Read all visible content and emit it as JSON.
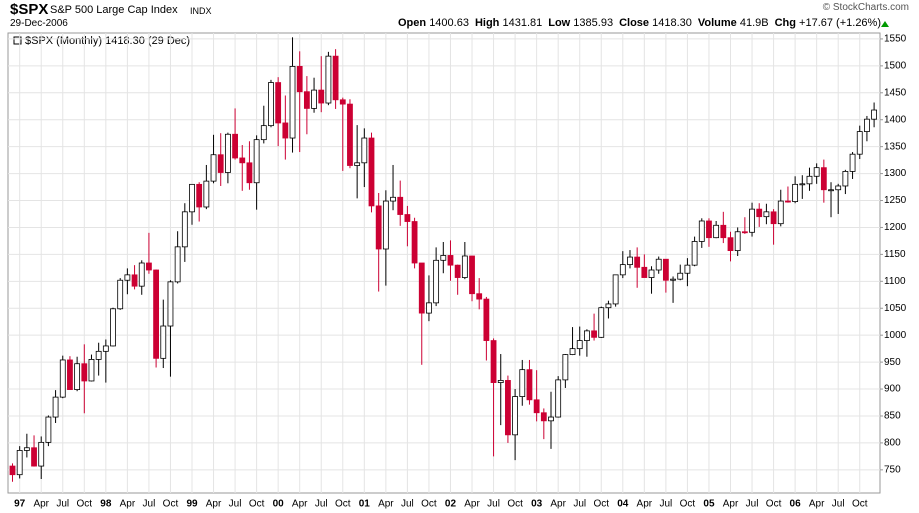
{
  "chart_data": {
    "type": "candlestick",
    "title": "$SPX",
    "subtitle": "S&P 500 Large Cap Index",
    "exchange": "INDX",
    "date": "29-Dec-2006",
    "source": "© StockCharts.com",
    "stats": [
      {
        "label": "Open",
        "value": "1400.63"
      },
      {
        "label": "High",
        "value": "1431.81"
      },
      {
        "label": "Low",
        "value": "1385.93"
      },
      {
        "label": "Close",
        "value": "1418.30"
      },
      {
        "label": "Volume",
        "value": "41.9B"
      },
      {
        "label": "Chg",
        "value": "+17.67 (+1.26%)"
      }
    ],
    "legend": "$SPX (Monthly) 1418.30 (29 Dec)",
    "up_color": "#000000",
    "down_color": "#cc0033",
    "grid": true,
    "ylim": [
      707,
      1561
    ],
    "yticks": [
      750,
      800,
      850,
      900,
      950,
      1000,
      1050,
      1100,
      1150,
      1200,
      1250,
      1300,
      1350,
      1400,
      1450,
      1500,
      1550
    ],
    "categories": [
      null,
      "97",
      null,
      null,
      "Apr",
      null,
      null,
      "Jul",
      null,
      null,
      "Oct",
      null,
      null,
      "98",
      null,
      null,
      "Apr",
      null,
      null,
      "Jul",
      null,
      null,
      "Oct",
      null,
      null,
      "99",
      null,
      null,
      "Apr",
      null,
      null,
      "Jul",
      null,
      null,
      "Oct",
      null,
      null,
      "00",
      null,
      null,
      "Apr",
      null,
      null,
      "Jul",
      null,
      null,
      "Oct",
      null,
      null,
      "01",
      null,
      null,
      "Apr",
      null,
      null,
      "Jul",
      null,
      null,
      "Oct",
      null,
      null,
      "02",
      null,
      null,
      "Apr",
      null,
      null,
      "Jul",
      null,
      null,
      "Oct",
      null,
      null,
      "03",
      null,
      null,
      "Apr",
      null,
      null,
      "Jul",
      null,
      null,
      "Oct",
      null,
      null,
      "04",
      null,
      null,
      "Apr",
      null,
      null,
      "Jul",
      null,
      null,
      "Oct",
      null,
      null,
      "05",
      null,
      null,
      "Apr",
      null,
      null,
      "Jul",
      null,
      null,
      "Oct",
      null,
      null,
      "06",
      null,
      null,
      "Apr",
      null,
      null,
      "Jul",
      null,
      null,
      "Oct",
      null,
      null
    ],
    "open": [
      757,
      741,
      786,
      791,
      757,
      801,
      848,
      885,
      954,
      899,
      947,
      915,
      955,
      970,
      980,
      1049,
      1102,
      1112,
      1091,
      1134,
      1121,
      957,
      1017,
      1099,
      1164,
      1229,
      1280,
      1238,
      1286,
      1335,
      1302,
      1373,
      1329,
      1320,
      1283,
      1363,
      1389,
      1469,
      1394,
      1366,
      1499,
      1452,
      1421,
      1455,
      1431,
      1518,
      1437,
      1429,
      1315,
      1320,
      1366,
      1240,
      1160,
      1249,
      1256,
      1224,
      1211,
      1134,
      1041,
      1060,
      1139,
      1148,
      1130,
      1107,
      1147,
      1077,
      1067,
      990,
      912,
      916,
      815,
      886,
      936,
      880,
      856,
      841,
      848,
      917,
      964,
      975,
      990,
      1008,
      996,
      1051,
      1058,
      1112,
      1131,
      1145,
      1126,
      1107,
      1121,
      1141,
      1102,
      1104,
      1115,
      1130,
      1174,
      1212,
      1181,
      1204,
      1181,
      1157,
      1192,
      1191,
      1234,
      1220,
      1229,
      1207,
      1249,
      1248,
      1280,
      1281,
      1295,
      1311,
      1270,
      1270,
      1277,
      1304,
      1336,
      1378,
      1401
    ],
    "high": [
      762,
      794,
      817,
      814,
      812,
      851,
      898,
      962,
      961,
      960,
      983,
      964,
      986,
      992,
      1051,
      1106,
      1124,
      1130,
      1139,
      1190,
      1122,
      1066,
      1102,
      1193,
      1245,
      1280,
      1284,
      1316,
      1372,
      1375,
      1376,
      1421,
      1353,
      1360,
      1371,
      1426,
      1474,
      1479,
      1445,
      1553,
      1527,
      1481,
      1478,
      1518,
      1526,
      1531,
      1441,
      1438,
      1390,
      1384,
      1376,
      1264,
      1269,
      1316,
      1287,
      1240,
      1218,
      1134,
      1111,
      1163,
      1173,
      1176,
      1131,
      1173,
      1147,
      1106,
      1071,
      994,
      965,
      925,
      900,
      954,
      954,
      935,
      864,
      895,
      924,
      965,
      1015,
      1016,
      1011,
      1040,
      1053,
      1064,
      1112,
      1156,
      1158,
      1163,
      1150,
      1128,
      1146,
      1141,
      1109,
      1131,
      1143,
      1183,
      1217,
      1217,
      1212,
      1229,
      1192,
      1200,
      1219,
      1246,
      1245,
      1244,
      1234,
      1270,
      1276,
      1295,
      1297,
      1311,
      1319,
      1326,
      1284,
      1281,
      1307,
      1340,
      1389,
      1407,
      1432
    ],
    "low": [
      728,
      734,
      773,
      756,
      733,
      794,
      837,
      883,
      899,
      896,
      855,
      914,
      925,
      912,
      979,
      1047,
      1076,
      1085,
      1075,
      1114,
      940,
      939,
      923,
      1096,
      1136,
      1205,
      1211,
      1234,
      1282,
      1277,
      1282,
      1326,
      1268,
      1270,
      1233,
      1356,
      1386,
      1351,
      1326,
      1339,
      1340,
      1373,
      1413,
      1414,
      1427,
      1420,
      1305,
      1310,
      1254,
      1275,
      1228,
      1081,
      1092,
      1232,
      1203,
      1165,
      1124,
      945,
      1026,
      1054,
      1115,
      1101,
      1075,
      1104,
      1063,
      1048,
      953,
      775,
      833,
      800,
      768,
      869,
      871,
      840,
      807,
      789,
      847,
      902,
      963,
      962,
      960,
      990,
      995,
      1031,
      1053,
      1106,
      1124,
      1088,
      1107,
      1077,
      1114,
      1079,
      1060,
      1102,
      1091,
      1128,
      1162,
      1164,
      1180,
      1171,
      1137,
      1147,
      1188,
      1183,
      1201,
      1206,
      1168,
      1202,
      1246,
      1245,
      1253,
      1268,
      1281,
      1246,
      1219,
      1225,
      1262,
      1290,
      1327,
      1360,
      1386
    ],
    "close": [
      741,
      786,
      791,
      757,
      801,
      848,
      885,
      954,
      899,
      947,
      915,
      955,
      970,
      980,
      1049,
      1102,
      1112,
      1091,
      1134,
      1121,
      957,
      1017,
      1099,
      1164,
      1229,
      1280,
      1238,
      1286,
      1335,
      1302,
      1373,
      1329,
      1320,
      1283,
      1363,
      1389,
      1469,
      1394,
      1366,
      1499,
      1452,
      1421,
      1455,
      1431,
      1518,
      1437,
      1429,
      1315,
      1320,
      1366,
      1240,
      1160,
      1249,
      1256,
      1224,
      1211,
      1134,
      1041,
      1060,
      1139,
      1148,
      1130,
      1107,
      1147,
      1077,
      1067,
      990,
      912,
      916,
      815,
      886,
      936,
      880,
      856,
      841,
      848,
      917,
      964,
      975,
      990,
      1008,
      996,
      1051,
      1058,
      1112,
      1131,
      1145,
      1126,
      1107,
      1121,
      1141,
      1102,
      1104,
      1115,
      1130,
      1174,
      1212,
      1181,
      1204,
      1181,
      1157,
      1192,
      1191,
      1234,
      1220,
      1229,
      1207,
      1249,
      1248,
      1280,
      1281,
      1295,
      1311,
      1270,
      1270,
      1277,
      1304,
      1336,
      1378,
      1401,
      1418
    ]
  }
}
